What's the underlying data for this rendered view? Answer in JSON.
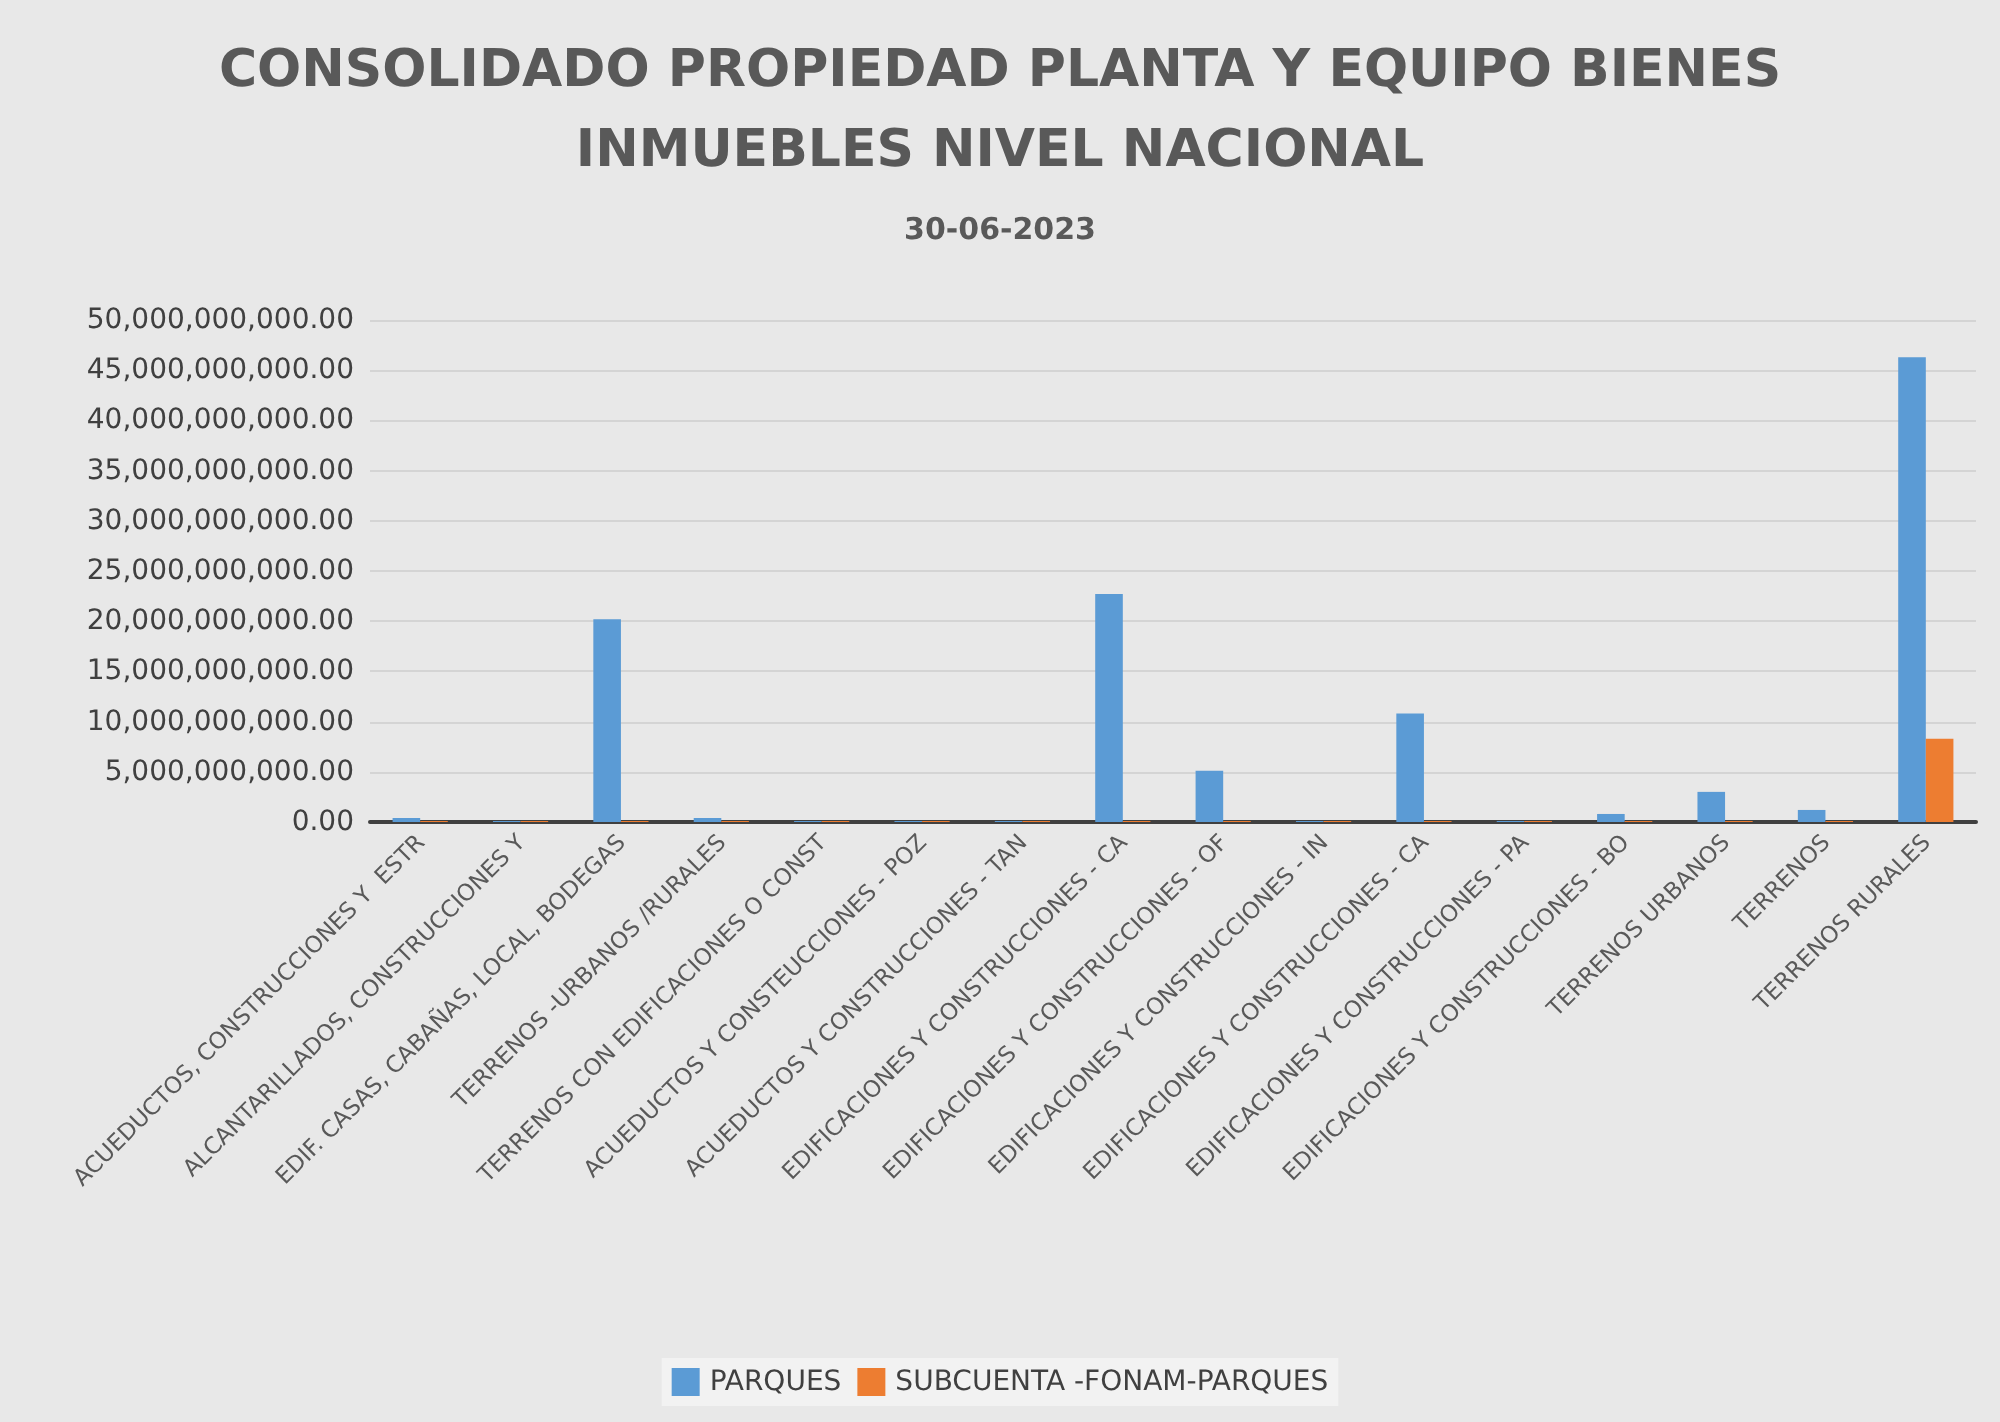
{
  "chart_data": {
    "type": "bar",
    "title": "CONSOLIDADO PROPIEDAD PLANTA Y EQUIPO BIENES\nINMUEBLES NIVEL NACIONAL",
    "subtitle": "30-06-2023",
    "categories": [
      "ACUEDUCTOS, CONSTRUCCIONES Y  ESTR",
      "ALCANTARILLADOS, CONSTRUCCIONES Y",
      "EDIF. CASAS, CABAÑAS, LOCAL, BODEGAS",
      "TERRENOS -URBANOS /RURALES",
      "TERRENOS CON EDIFICACIONES O CONST",
      "ACUEDUCTOS Y CONSTEUCCIONES - POZ",
      "ACUEDUCTOS Y CONSTRUCCIONES - TAN",
      "EDIFICACIONES Y CONSTRUCCIONES - CA",
      "EDIFICACIONES Y CONSTRUCCIONES - OF",
      "EDIFICACIONES Y CONSTRUCCIONES - IN",
      "EDIFICACIONES Y CONSTRUCCIONES - CA",
      "EDIFICACIONES Y CONSTRUCCIONES - PA",
      "EDIFICACIONES Y CONSTRUCCIONES - BO",
      "TERRENOS URBANOS",
      "TERRENOS",
      "TERRENOS RURALES"
    ],
    "series": [
      {
        "name": "PARQUES",
        "color": "#5b9bd5",
        "values": [
          400000000,
          100000000,
          20200000000,
          400000000,
          100000000,
          100000000,
          100000000,
          22700000000,
          5100000000,
          100000000,
          10800000000,
          100000000,
          800000000,
          3000000000,
          1200000000,
          46300000000
        ]
      },
      {
        "name": "SUBCUENTA -FONAM-PARQUES",
        "color": "#ed7d31",
        "values": [
          100000000,
          100000000,
          100000000,
          100000000,
          100000000,
          100000000,
          100000000,
          100000000,
          100000000,
          100000000,
          100000000,
          100000000,
          100000000,
          100000000,
          100000000,
          8300000000
        ]
      }
    ],
    "ylim": [
      0,
      50000000000
    ],
    "yticks": [
      {
        "value": 0,
        "label": "0.00"
      },
      {
        "value": 5000000000,
        "label": "5,000,000,000.00"
      },
      {
        "value": 10000000000,
        "label": "10,000,000,000.00"
      },
      {
        "value": 15000000000,
        "label": "15,000,000,000.00"
      },
      {
        "value": 20000000000,
        "label": "20,000,000,000.00"
      },
      {
        "value": 25000000000,
        "label": "25,000,000,000.00"
      },
      {
        "value": 30000000000,
        "label": "30,000,000,000.00"
      },
      {
        "value": 35000000000,
        "label": "35,000,000,000.00"
      },
      {
        "value": 40000000000,
        "label": "40,000,000,000.00"
      },
      {
        "value": 45000000000,
        "label": "45,000,000,000.00"
      },
      {
        "value": 50000000000,
        "label": "50,000,000,000.00"
      }
    ],
    "grid": "y",
    "legend": "bottom"
  }
}
